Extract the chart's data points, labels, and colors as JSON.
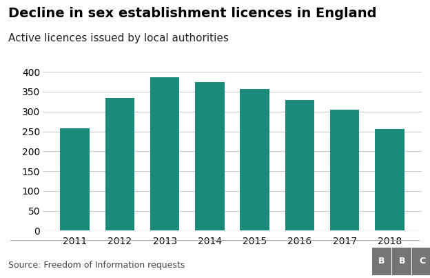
{
  "title": "Decline in sex establishment licences in England",
  "subtitle": "Active licences issued by local authorities",
  "years": [
    "2011",
    "2012",
    "2013",
    "2014",
    "2015",
    "2016",
    "2017",
    "2018"
  ],
  "values": [
    258,
    335,
    387,
    375,
    357,
    330,
    304,
    257
  ],
  "bar_color": "#1a8a7a",
  "background_color": "#ffffff",
  "ylim": [
    0,
    420
  ],
  "yticks": [
    0,
    50,
    100,
    150,
    200,
    250,
    300,
    350,
    400
  ],
  "title_fontsize": 14,
  "subtitle_fontsize": 11,
  "tick_fontsize": 10,
  "source_text": "Source: Freedom of Information requests",
  "bbc_text": "BBC",
  "grid_color": "#cccccc",
  "bbc_box_color": "#757575"
}
